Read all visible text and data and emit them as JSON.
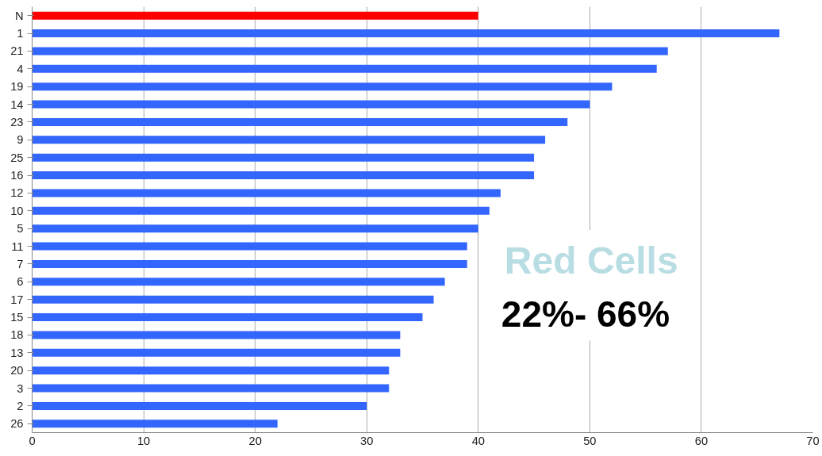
{
  "chart_data": {
    "type": "bar",
    "orientation": "horizontal",
    "categories": [
      "N",
      "1",
      "21",
      "4",
      "19",
      "14",
      "23",
      "9",
      "25",
      "16",
      "12",
      "10",
      "5",
      "11",
      "7",
      "6",
      "17",
      "15",
      "18",
      "13",
      "20",
      "3",
      "2",
      "26"
    ],
    "values": [
      40,
      67,
      57,
      56,
      52,
      50,
      48,
      46,
      45,
      45,
      42,
      41,
      40,
      39,
      39,
      37,
      36,
      35,
      33,
      33,
      32,
      32,
      30,
      22
    ],
    "colors": [
      "#ff0000",
      "#3366ff",
      "#3366ff",
      "#3366ff",
      "#3366ff",
      "#3366ff",
      "#3366ff",
      "#3366ff",
      "#3366ff",
      "#3366ff",
      "#3366ff",
      "#3366ff",
      "#3366ff",
      "#3366ff",
      "#3366ff",
      "#3366ff",
      "#3366ff",
      "#3366ff",
      "#3366ff",
      "#3366ff",
      "#3366ff",
      "#3366ff",
      "#3366ff",
      "#3366ff"
    ],
    "xlim": [
      0,
      70
    ],
    "xticks": [
      0,
      10,
      20,
      30,
      40,
      50,
      60,
      70
    ],
    "grid": "x",
    "annotations": [
      "Red Cells",
      "22%- 66%"
    ]
  }
}
